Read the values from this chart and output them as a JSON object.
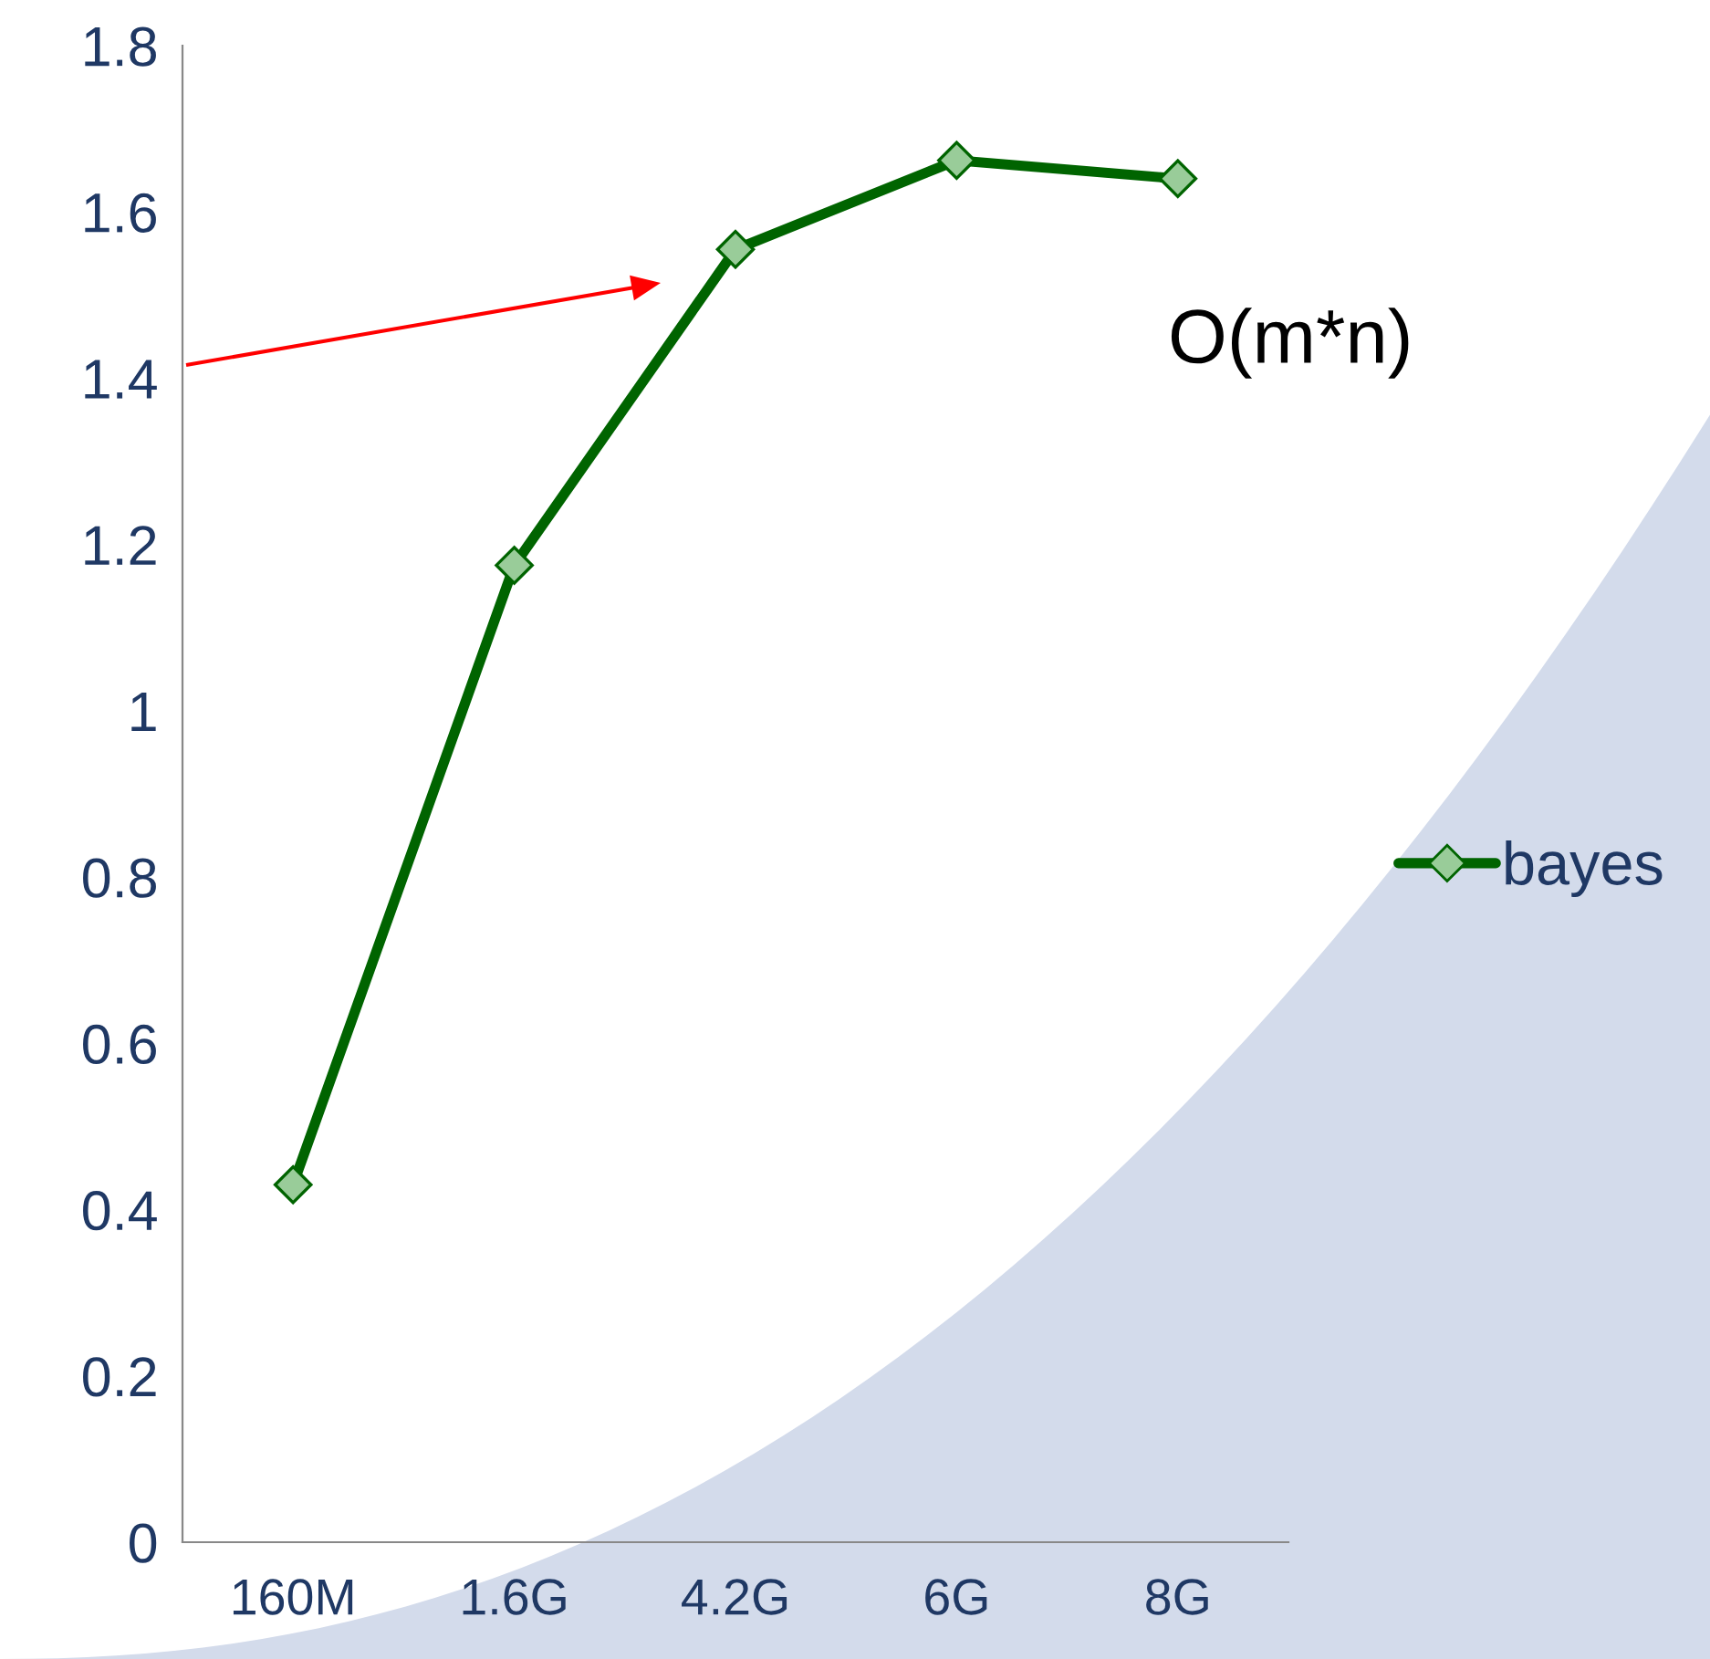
{
  "chart_data": {
    "type": "line",
    "categories": [
      "160M",
      "1.6G",
      "4.2G",
      "6G",
      "8G"
    ],
    "series": [
      {
        "name": "bayes",
        "color": "#006400",
        "values": [
          0.43,
          1.175,
          1.555,
          1.662,
          1.64
        ]
      }
    ],
    "ylim": [
      0,
      1.8
    ],
    "yticks": [
      0,
      0.2,
      0.4,
      0.6,
      0.8,
      1,
      1.2,
      1.4,
      1.6,
      1.8
    ],
    "marker": "diamond",
    "legend": "right",
    "grid": false,
    "annotations": [
      "O(m*n)"
    ]
  }
}
